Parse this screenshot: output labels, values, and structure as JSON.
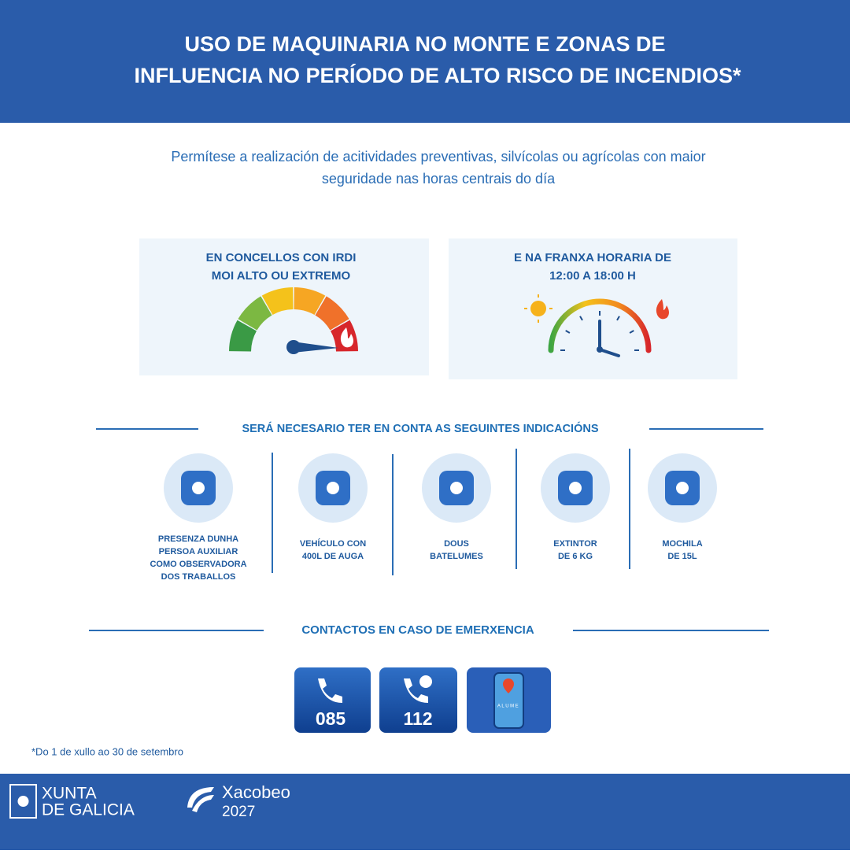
{
  "header": {
    "title_lines": [
      "USO DE MAQUINARIA NO MONTE E ZONAS DE",
      "INFLUENCIA NO PERÍODO DE ALTO RISCO DE INCENDIOS*"
    ]
  },
  "intro": [
    "Permítese a realización de acitividades preventivas, silvícolas ou agrícolas con maior",
    "seguridade nas horas centrais do día"
  ],
  "conditions": [
    {
      "lines": [
        "EN CONCELLOS CON IRDI",
        "MOI ALTO OU EXTREMO"
      ]
    },
    {
      "lines": [
        "E NA FRANXA HORARIA DE",
        "12:00 A 18:00 H"
      ]
    }
  ],
  "indications": {
    "title": "SERÁ NECESARIO TER EN CONTA AS SEGUINTES INDICACIÓNS",
    "items": [
      {
        "lines": [
          "PRESENZA DUNHA",
          "PERSOA AUXILIAR",
          "COMO OBSERVADORA",
          "DOS TRABALLOS"
        ]
      },
      {
        "lines": [
          "VEHÍCULO CON",
          "400L DE AUGA"
        ]
      },
      {
        "lines": [
          "DOUS",
          "BATELUMES"
        ]
      },
      {
        "lines": [
          "EXTINTOR",
          "DE 6 KG"
        ]
      },
      {
        "lines": [
          "MOCHILA",
          "DE 15L"
        ]
      }
    ]
  },
  "contacts": {
    "title": "CONTACTOS EN CASO DE EMERXENCIA",
    "phones": [
      "085",
      "112"
    ],
    "app": "ALUME"
  },
  "footnote": "*Do 1 de xullo ao 30 de setembro",
  "footer": {
    "xunta": [
      "XUNTA",
      "DE GALICIA"
    ],
    "xacobeo": [
      "Xacobeo",
      "2027"
    ]
  }
}
